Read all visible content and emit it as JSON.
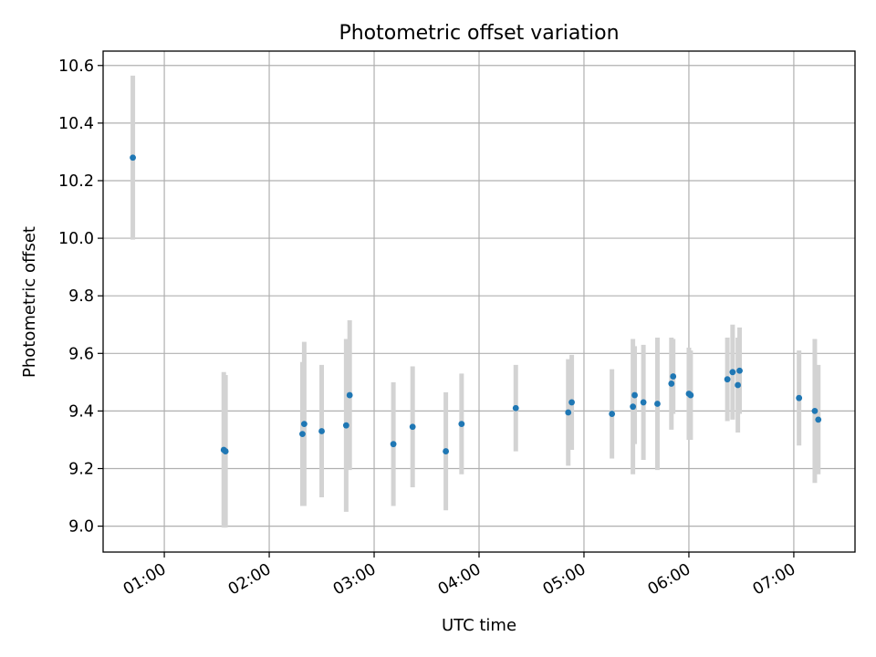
{
  "chart_data": {
    "type": "scatter",
    "title": "Photometric offset variation",
    "xlabel": "UTC time",
    "ylabel": "Photometric offset",
    "x_ticks": [
      "01:00",
      "02:00",
      "03:00",
      "04:00",
      "05:00",
      "06:00",
      "07:00"
    ],
    "x_tick_values": [
      1.0,
      2.0,
      3.0,
      4.0,
      5.0,
      6.0,
      7.0
    ],
    "y_ticks": [
      "9.0",
      "9.2",
      "9.4",
      "9.6",
      "9.8",
      "10.0",
      "10.2",
      "10.4",
      "10.6"
    ],
    "y_tick_values": [
      9.0,
      9.2,
      9.4,
      9.6,
      9.8,
      10.0,
      10.2,
      10.4,
      10.6
    ],
    "xlim": [
      "00:25",
      "07:35"
    ],
    "ylim": [
      8.91,
      10.65
    ],
    "grid": true,
    "error_bars": true,
    "marker_color": "#1f77b4",
    "errorbar_color": "#d3d3d3",
    "points": [
      {
        "x": "00:42",
        "y": 10.28,
        "yerr": 0.285
      },
      {
        "x": "01:34",
        "y": 9.265,
        "yerr": 0.27
      },
      {
        "x": "01:35",
        "y": 9.26,
        "yerr": 0.265
      },
      {
        "x": "02:19",
        "y": 9.32,
        "yerr": 0.25
      },
      {
        "x": "02:20",
        "y": 9.355,
        "yerr": 0.285
      },
      {
        "x": "02:30",
        "y": 9.33,
        "yerr": 0.23
      },
      {
        "x": "02:44",
        "y": 9.35,
        "yerr": 0.3
      },
      {
        "x": "02:46",
        "y": 9.455,
        "yerr": 0.26
      },
      {
        "x": "03:11",
        "y": 9.285,
        "yerr": 0.215
      },
      {
        "x": "03:22",
        "y": 9.345,
        "yerr": 0.21
      },
      {
        "x": "03:41",
        "y": 9.26,
        "yerr": 0.205
      },
      {
        "x": "03:50",
        "y": 9.355,
        "yerr": 0.175
      },
      {
        "x": "04:21",
        "y": 9.41,
        "yerr": 0.15
      },
      {
        "x": "04:51",
        "y": 9.395,
        "yerr": 0.185
      },
      {
        "x": "04:53",
        "y": 9.43,
        "yerr": 0.165
      },
      {
        "x": "05:16",
        "y": 9.39,
        "yerr": 0.155
      },
      {
        "x": "05:28",
        "y": 9.415,
        "yerr": 0.235
      },
      {
        "x": "05:29",
        "y": 9.455,
        "yerr": 0.17
      },
      {
        "x": "05:34",
        "y": 9.43,
        "yerr": 0.2
      },
      {
        "x": "05:42",
        "y": 9.425,
        "yerr": 0.23
      },
      {
        "x": "05:50",
        "y": 9.495,
        "yerr": 0.16
      },
      {
        "x": "05:51",
        "y": 9.52,
        "yerr": 0.13
      },
      {
        "x": "06:00",
        "y": 9.46,
        "yerr": 0.16
      },
      {
        "x": "06:01",
        "y": 9.455,
        "yerr": 0.155
      },
      {
        "x": "06:22",
        "y": 9.51,
        "yerr": 0.145
      },
      {
        "x": "06:25",
        "y": 9.535,
        "yerr": 0.165
      },
      {
        "x": "06:28",
        "y": 9.49,
        "yerr": 0.165
      },
      {
        "x": "06:29",
        "y": 9.54,
        "yerr": 0.15
      },
      {
        "x": "07:03",
        "y": 9.445,
        "yerr": 0.165
      },
      {
        "x": "07:12",
        "y": 9.4,
        "yerr": 0.25
      },
      {
        "x": "07:14",
        "y": 9.37,
        "yerr": 0.19
      }
    ]
  }
}
